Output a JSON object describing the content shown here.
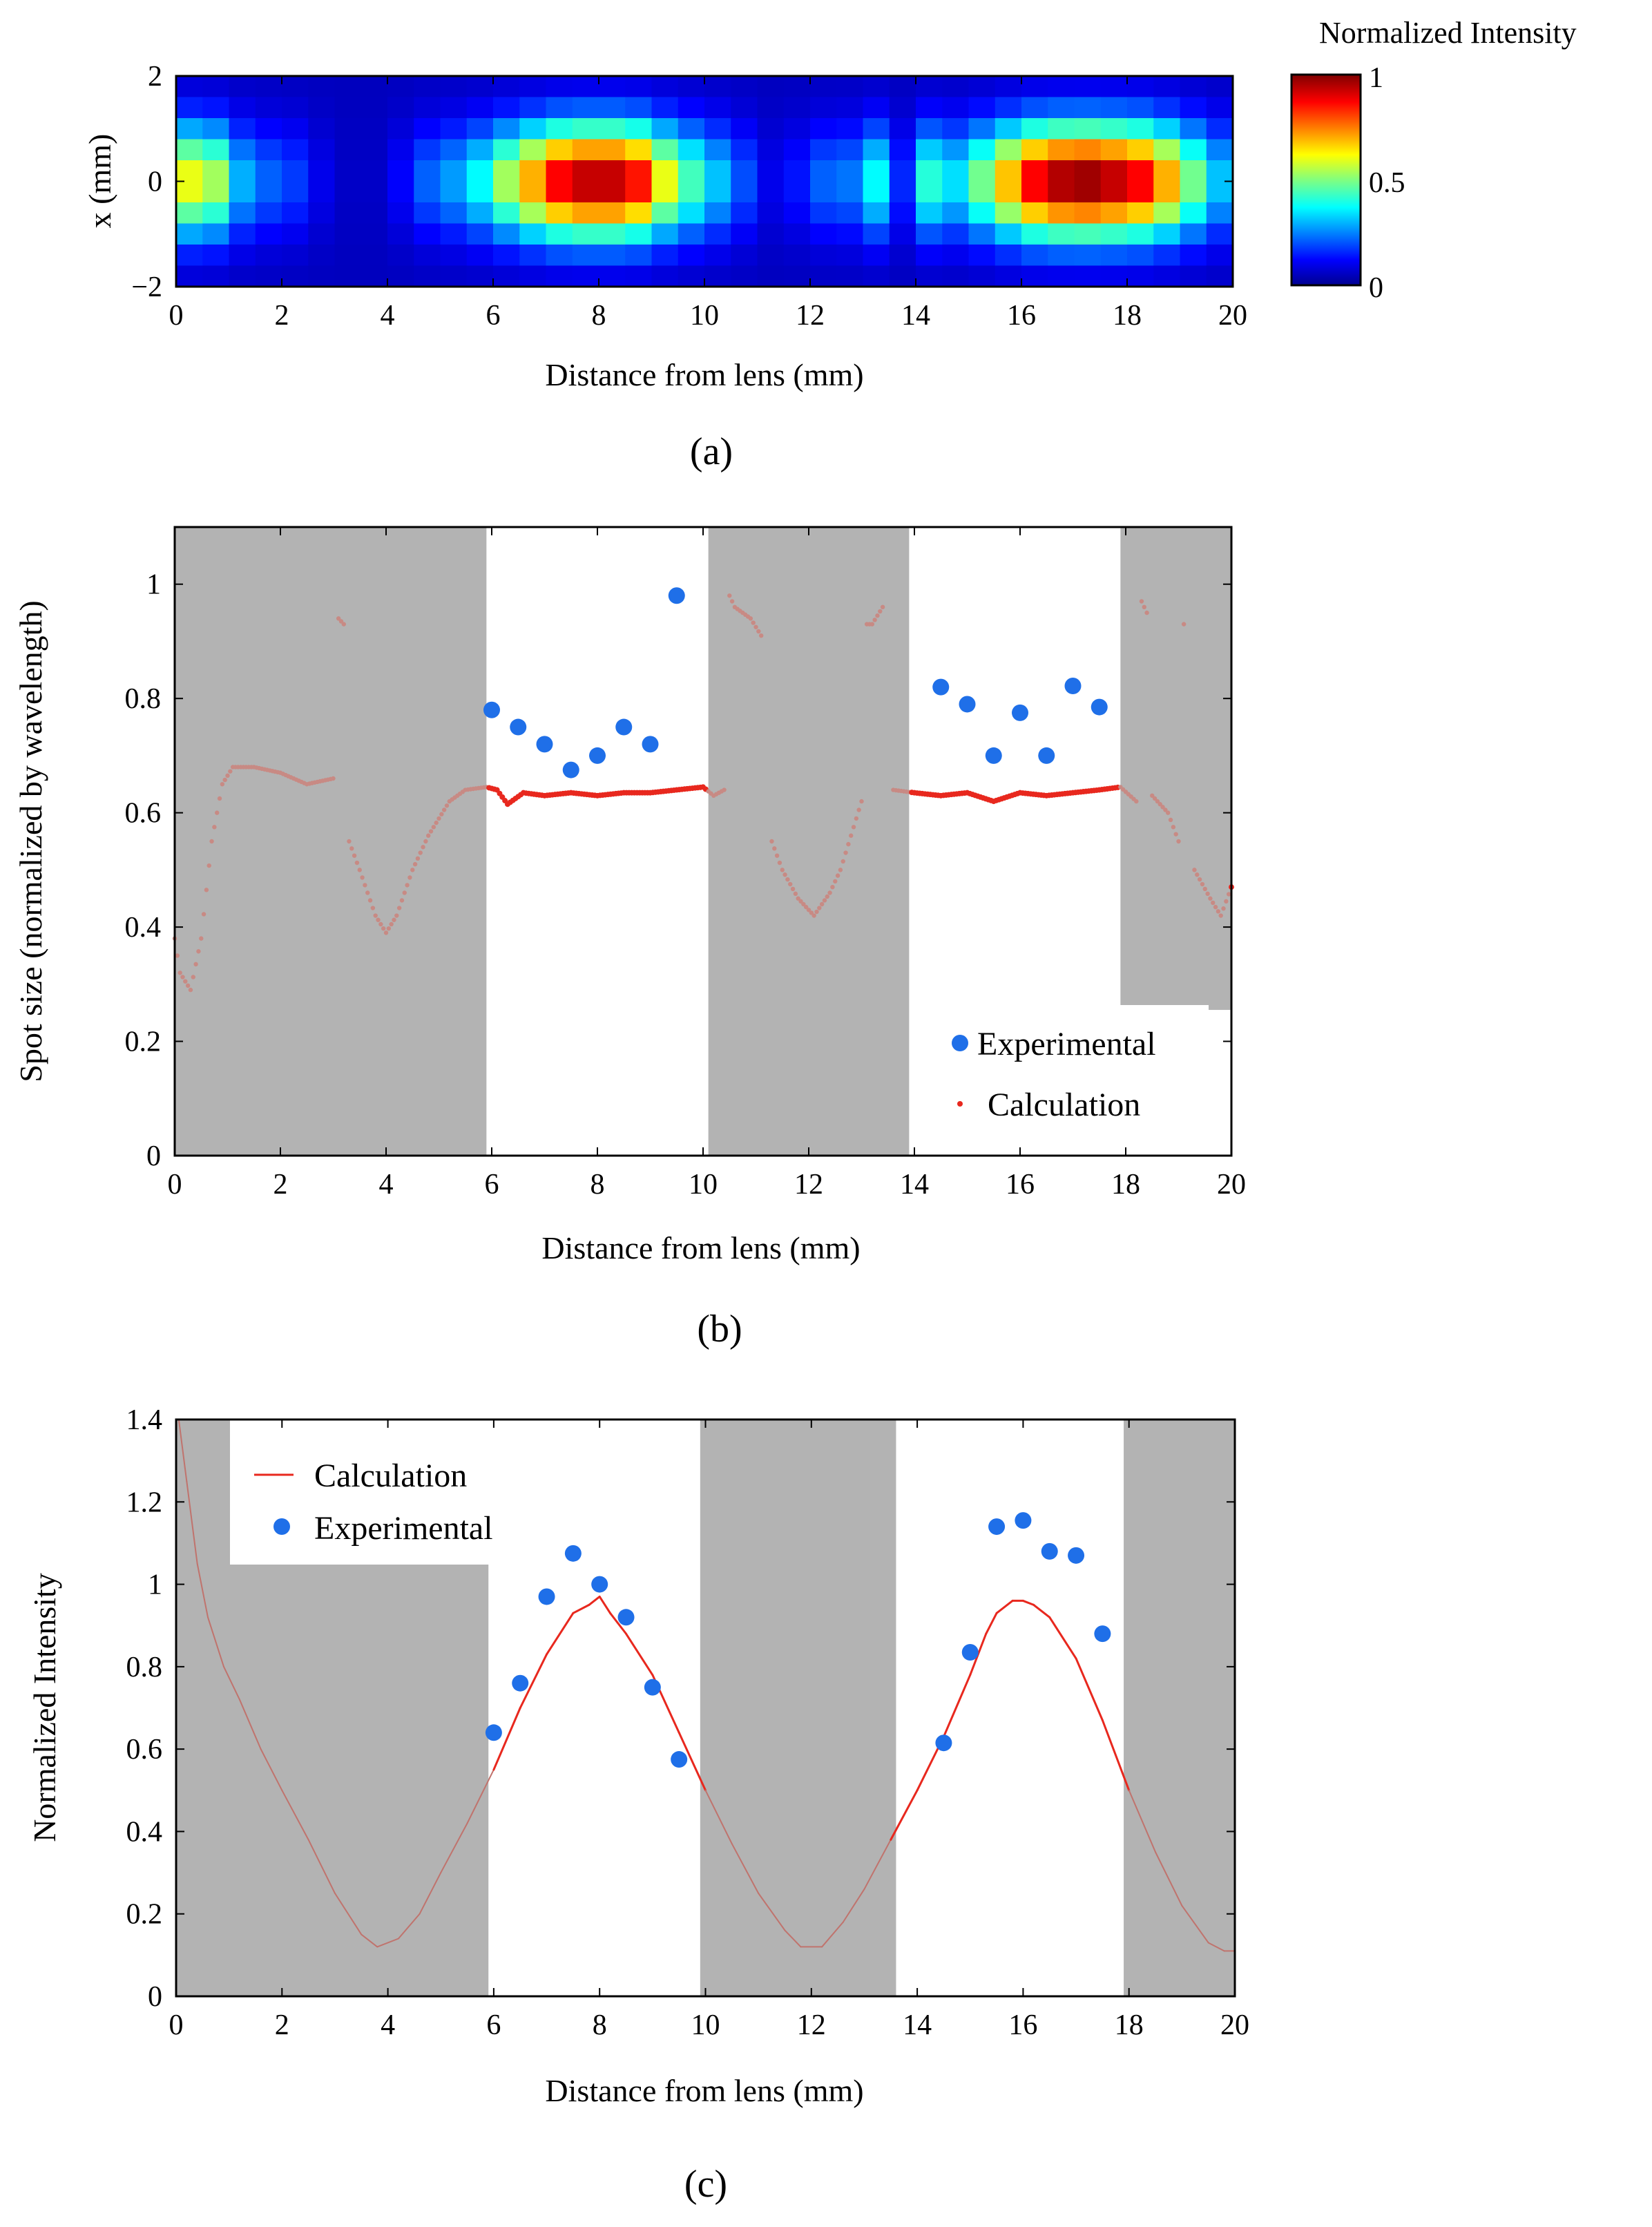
{
  "chart_data": [
    {
      "panel_label": "(a)",
      "type": "heatmap",
      "xlabel": "Distance from lens (mm)",
      "ylabel": "x (mm)",
      "xlim": [
        0,
        20
      ],
      "ylim": [
        -2,
        2
      ],
      "xticks": [
        "0",
        "2",
        "4",
        "6",
        "8",
        "10",
        "12",
        "14",
        "16",
        "18",
        "20"
      ],
      "yticks": [
        "2",
        "0",
        "−2"
      ],
      "colorbar": {
        "title": "Normalized  Intensity",
        "ticks": [
          "1",
          "0.5",
          "0"
        ],
        "range": [
          0,
          1
        ]
      },
      "x_bin_width_mm": 0.5,
      "x_edges_mm": [
        0,
        20
      ],
      "x_rows": [
        -1.8,
        -1.4,
        -1.0,
        -0.6,
        -0.2,
        0.2,
        0.6,
        1.0,
        1.4,
        1.8
      ],
      "center_intensity_by_bin": [
        0.62,
        0.55,
        0.3,
        0.22,
        0.18,
        0.1,
        0.06,
        0.06,
        0.12,
        0.22,
        0.28,
        0.38,
        0.55,
        0.72,
        0.9,
        0.96,
        0.96,
        0.88,
        0.62,
        0.45,
        0.32,
        0.2,
        0.1,
        0.14,
        0.22,
        0.24,
        0.38,
        0.16,
        0.42,
        0.35,
        0.5,
        0.7,
        0.9,
        0.98,
        1.0,
        0.96,
        0.9,
        0.72,
        0.5,
        0.32
      ]
    },
    {
      "panel_label": "(b)",
      "type": "scatter",
      "xlabel": "Distance from lens (mm)",
      "ylabel": "Spot size (normalized  by wavelength)",
      "xlim": [
        0,
        20
      ],
      "ylim": [
        0,
        1.1
      ],
      "xticks": [
        "0",
        "2",
        "4",
        "6",
        "8",
        "10",
        "12",
        "14",
        "16",
        "18",
        "20"
      ],
      "yticks": [
        "0",
        "0.2",
        "0.4",
        "0.6",
        "0.8",
        "1"
      ],
      "shaded_regions_mm": [
        [
          0,
          5.9
        ],
        [
          10.1,
          13.9
        ],
        [
          17.9,
          20
        ]
      ],
      "legend": [
        "Experimental",
        "Calculation"
      ],
      "legend_position": "bottom-right",
      "series": [
        {
          "name": "Experimental",
          "x": [
            6,
            6.5,
            7,
            7.5,
            8,
            8.5,
            9,
            9.5,
            14.5,
            15,
            15.5,
            16,
            16.5,
            17,
            17.5
          ],
          "y": [
            0.78,
            0.75,
            0.72,
            0.675,
            0.7,
            0.75,
            0.72,
            0.98,
            0.82,
            0.79,
            0.7,
            0.775,
            0.7,
            0.822,
            0.785
          ]
        },
        {
          "name": "Calculation",
          "x": [
            0,
            0.1,
            0.3,
            0.5,
            0.7,
            0.9,
            1.1,
            1.5,
            2.0,
            2.5,
            3.0,
            3.1,
            3.2,
            3.3,
            3.5,
            3.8,
            4.0,
            4.2,
            4.5,
            4.8,
            5.2,
            5.5,
            5.9,
            6.1,
            6.3,
            6.6,
            7.0,
            7.5,
            8.0,
            8.5,
            9.0,
            9.5,
            10.0,
            10.2,
            10.4,
            10.5,
            10.6,
            10.9,
            11.1,
            11.3,
            11.5,
            11.8,
            12.1,
            12.4,
            12.6,
            12.8,
            13.0,
            13.1,
            13.2,
            13.4,
            13.6,
            14.0,
            14.5,
            15.0,
            15.5,
            16.0,
            16.5,
            17.0,
            17.5,
            17.9,
            18.2,
            18.3,
            18.4,
            18.5,
            18.6,
            18.8,
            19.0,
            19.1,
            19.3,
            19.6,
            19.8,
            20.0
          ],
          "y": [
            0.38,
            0.32,
            0.29,
            0.38,
            0.55,
            0.65,
            0.68,
            0.68,
            0.67,
            0.65,
            0.66,
            0.94,
            0.93,
            0.55,
            0.5,
            0.42,
            0.39,
            0.42,
            0.5,
            0.56,
            0.62,
            0.64,
            0.645,
            0.64,
            0.615,
            0.635,
            0.63,
            0.635,
            0.63,
            0.635,
            0.635,
            0.64,
            0.645,
            0.63,
            0.64,
            0.98,
            0.96,
            0.94,
            0.91,
            0.55,
            0.5,
            0.45,
            0.42,
            0.46,
            0.5,
            0.56,
            0.62,
            0.93,
            0.93,
            0.96,
            0.64,
            0.635,
            0.63,
            0.635,
            0.62,
            0.635,
            0.63,
            0.635,
            0.64,
            0.645,
            0.62,
            0.97,
            0.95,
            0.63,
            0.62,
            0.6,
            0.55,
            0.93,
            0.5,
            0.45,
            0.42,
            0.47
          ]
        }
      ]
    },
    {
      "panel_label": "(c)",
      "type": "line",
      "xlabel": "Distance from lens (mm)",
      "ylabel": "Normalized  Intensity",
      "xlim": [
        0,
        20
      ],
      "ylim": [
        0,
        1.4
      ],
      "xticks": [
        "0",
        "2",
        "4",
        "6",
        "8",
        "10",
        "12",
        "14",
        "16",
        "18",
        "20"
      ],
      "yticks": [
        "0",
        "0.2",
        "0.4",
        "0.6",
        "0.8",
        "1",
        "1.2",
        "1.4"
      ],
      "shaded_regions_mm": [
        [
          0,
          5.9
        ],
        [
          9.9,
          13.6
        ],
        [
          17.9,
          20
        ]
      ],
      "legend": [
        "Calculation",
        "Experimental"
      ],
      "legend_position": "top-left",
      "series": [
        {
          "name": "Calculation",
          "x": [
            0.05,
            0.2,
            0.4,
            0.6,
            0.9,
            1.2,
            1.6,
            2.0,
            2.5,
            3.0,
            3.5,
            3.8,
            4.2,
            4.6,
            5.0,
            5.5,
            6.0,
            6.5,
            7.0,
            7.5,
            7.8,
            8.0,
            8.2,
            8.5,
            9.0,
            9.5,
            10.0,
            10.5,
            11.0,
            11.5,
            11.8,
            12.2,
            12.6,
            13.0,
            13.5,
            14.0,
            14.5,
            15.0,
            15.3,
            15.5,
            15.8,
            16.0,
            16.2,
            16.5,
            17.0,
            17.5,
            18.0,
            18.5,
            19.0,
            19.5,
            19.8,
            20.0
          ],
          "y": [
            1.4,
            1.25,
            1.05,
            0.92,
            0.8,
            0.72,
            0.6,
            0.5,
            0.38,
            0.25,
            0.15,
            0.12,
            0.14,
            0.2,
            0.3,
            0.42,
            0.55,
            0.7,
            0.83,
            0.93,
            0.95,
            0.97,
            0.93,
            0.88,
            0.78,
            0.64,
            0.5,
            0.37,
            0.25,
            0.16,
            0.12,
            0.12,
            0.18,
            0.26,
            0.38,
            0.5,
            0.63,
            0.78,
            0.88,
            0.93,
            0.96,
            0.96,
            0.95,
            0.92,
            0.82,
            0.67,
            0.5,
            0.35,
            0.22,
            0.13,
            0.11,
            0.11
          ]
        },
        {
          "name": "Experimental",
          "x": [
            6,
            6.5,
            7,
            7.5,
            8,
            8.5,
            9,
            9.5,
            14.5,
            15,
            15.5,
            16,
            16.5,
            17,
            17.5
          ],
          "y": [
            0.64,
            0.76,
            0.97,
            1.075,
            1.0,
            0.92,
            0.75,
            0.575,
            0.615,
            0.835,
            1.14,
            1.155,
            1.08,
            1.07,
            0.88
          ]
        }
      ]
    }
  ]
}
